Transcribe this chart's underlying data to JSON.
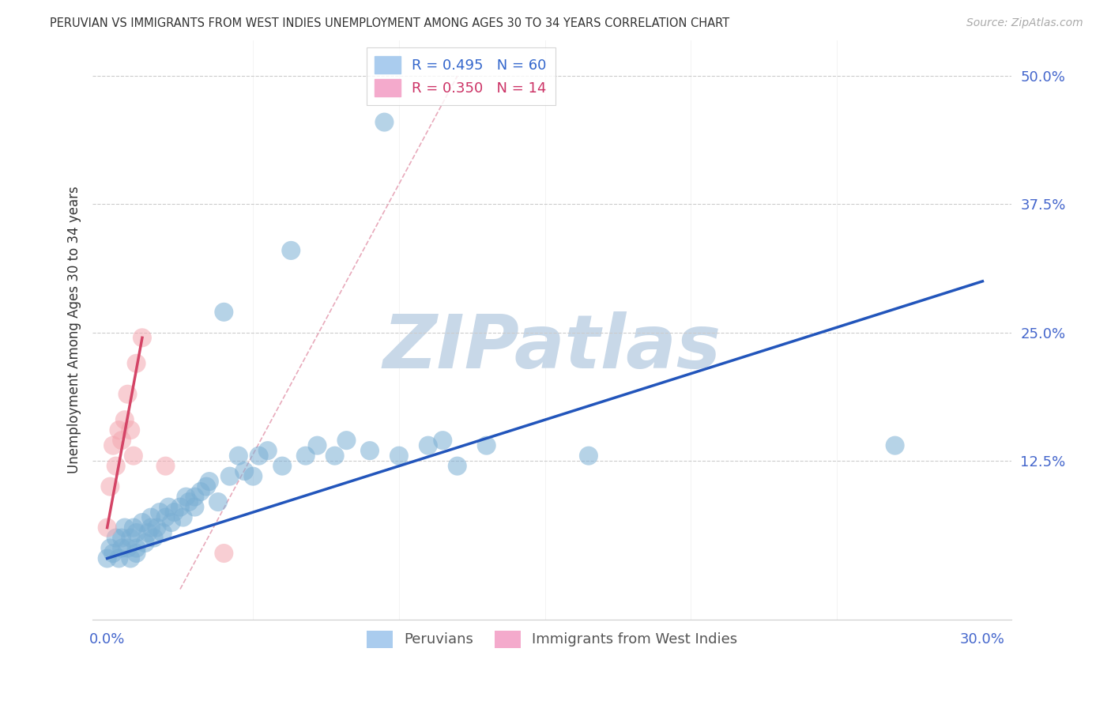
{
  "title": "PERUVIAN VS IMMIGRANTS FROM WEST INDIES UNEMPLOYMENT AMONG AGES 30 TO 34 YEARS CORRELATION CHART",
  "source": "Source: ZipAtlas.com",
  "ylabel": "Unemployment Among Ages 30 to 34 years",
  "xlim": [
    -0.005,
    0.31
  ],
  "ylim": [
    -0.03,
    0.535
  ],
  "ytick_values_right": [
    0.5,
    0.375,
    0.25,
    0.125
  ],
  "ytick_labels_right": [
    "50.0%",
    "37.5%",
    "25.0%",
    "12.5%"
  ],
  "blue_color": "#7BAFD4",
  "pink_color": "#F4A7B0",
  "blue_line_color": "#2255BB",
  "pink_line_color": "#D44466",
  "watermark": "ZIPatlas",
  "watermark_color": "#C8D8E8",
  "blue_scatter_x": [
    0.0,
    0.001,
    0.002,
    0.003,
    0.004,
    0.005,
    0.005,
    0.006,
    0.007,
    0.008,
    0.008,
    0.009,
    0.01,
    0.01,
    0.01,
    0.012,
    0.013,
    0.014,
    0.015,
    0.015,
    0.016,
    0.017,
    0.018,
    0.019,
    0.02,
    0.021,
    0.022,
    0.023,
    0.025,
    0.026,
    0.027,
    0.028,
    0.03,
    0.03,
    0.032,
    0.034,
    0.035,
    0.038,
    0.04,
    0.042,
    0.045,
    0.047,
    0.05,
    0.052,
    0.055,
    0.06,
    0.063,
    0.068,
    0.072,
    0.078,
    0.082,
    0.09,
    0.095,
    0.1,
    0.11,
    0.115,
    0.12,
    0.13,
    0.27,
    0.165
  ],
  "blue_scatter_y": [
    0.03,
    0.04,
    0.035,
    0.05,
    0.03,
    0.04,
    0.05,
    0.06,
    0.04,
    0.05,
    0.03,
    0.06,
    0.04,
    0.055,
    0.035,
    0.065,
    0.045,
    0.055,
    0.06,
    0.07,
    0.05,
    0.06,
    0.075,
    0.055,
    0.07,
    0.08,
    0.065,
    0.075,
    0.08,
    0.07,
    0.09,
    0.085,
    0.09,
    0.08,
    0.095,
    0.1,
    0.105,
    0.085,
    0.27,
    0.11,
    0.13,
    0.115,
    0.11,
    0.13,
    0.135,
    0.12,
    0.33,
    0.13,
    0.14,
    0.13,
    0.145,
    0.135,
    0.455,
    0.13,
    0.14,
    0.145,
    0.12,
    0.14,
    0.14,
    0.13
  ],
  "pink_scatter_x": [
    0.0,
    0.001,
    0.002,
    0.003,
    0.004,
    0.005,
    0.006,
    0.007,
    0.008,
    0.009,
    0.01,
    0.012,
    0.02,
    0.04
  ],
  "pink_scatter_y": [
    0.06,
    0.1,
    0.14,
    0.12,
    0.155,
    0.145,
    0.165,
    0.19,
    0.155,
    0.13,
    0.22,
    0.245,
    0.12,
    0.035
  ],
  "blue_line_x0": 0.0,
  "blue_line_y0": 0.03,
  "blue_line_x1": 0.3,
  "blue_line_y1": 0.3,
  "pink_line_x0": 0.0,
  "pink_line_y0": 0.06,
  "pink_line_x1": 0.012,
  "pink_line_y1": 0.245,
  "diag_line_x0": 0.025,
  "diag_line_y0": 0.0,
  "diag_line_x1": 0.12,
  "diag_line_y1": 0.5
}
